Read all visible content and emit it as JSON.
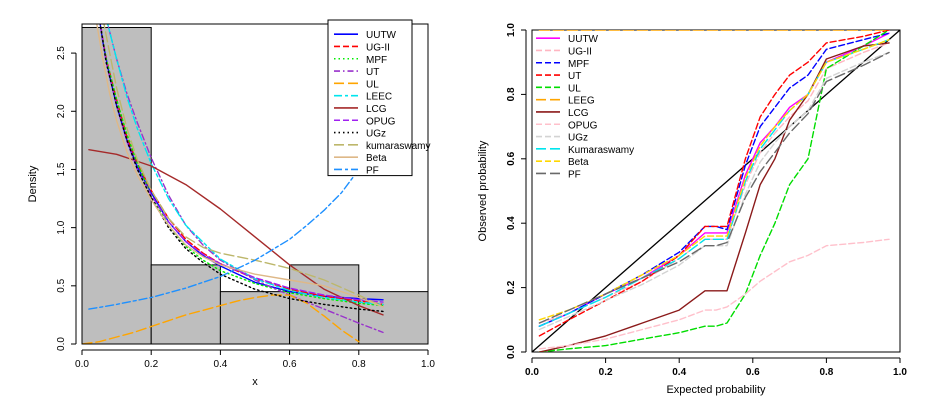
{
  "chart_data": [
    {
      "type": "histogram-with-density-curves",
      "xlabel": "x",
      "ylabel": "Density",
      "xlim": [
        0,
        1
      ],
      "ylim": [
        0,
        2.75
      ],
      "xticks": [
        "0.0",
        "0.2",
        "0.4",
        "0.6",
        "0.8",
        "1.0"
      ],
      "yticks": [
        "0.0",
        "0.5",
        "1.0",
        "1.5",
        "2.0",
        "2.5"
      ],
      "histogram": {
        "bins": [
          [
            0.0,
            0.2
          ],
          [
            0.2,
            0.4
          ],
          [
            0.4,
            0.6
          ],
          [
            0.6,
            0.8
          ],
          [
            0.8,
            1.0
          ]
        ],
        "values": [
          2.72,
          0.68,
          0.45,
          0.68,
          0.45
        ],
        "fill": "#bebebe"
      },
      "legend_position": "top-right",
      "series": [
        {
          "name": "UUTW",
          "color": "#0000ff",
          "dash": "solid",
          "x": [
            0.05,
            0.06,
            0.08,
            0.1,
            0.13,
            0.16,
            0.2,
            0.25,
            0.3,
            0.35,
            0.4,
            0.5,
            0.6,
            0.7,
            0.8,
            0.87
          ],
          "y": [
            2.8,
            2.6,
            2.3,
            2.05,
            1.75,
            1.52,
            1.3,
            1.05,
            0.88,
            0.76,
            0.67,
            0.53,
            0.45,
            0.41,
            0.39,
            0.38
          ]
        },
        {
          "name": "UG-II",
          "color": "#ff0000",
          "dash": "dashed",
          "x": [
            0.05,
            0.07,
            0.1,
            0.13,
            0.16,
            0.2,
            0.25,
            0.3,
            0.35,
            0.4,
            0.5,
            0.6,
            0.7,
            0.8,
            0.87
          ],
          "y": [
            2.8,
            2.45,
            2.1,
            1.78,
            1.55,
            1.32,
            1.08,
            0.9,
            0.78,
            0.69,
            0.56,
            0.47,
            0.41,
            0.37,
            0.34
          ]
        },
        {
          "name": "MPF",
          "color": "#00ee00",
          "dash": "dotted",
          "x": [
            0.05,
            0.07,
            0.1,
            0.13,
            0.16,
            0.2,
            0.25,
            0.3,
            0.35,
            0.4,
            0.5,
            0.6,
            0.7,
            0.8,
            0.87
          ],
          "y": [
            2.8,
            2.45,
            2.1,
            1.8,
            1.55,
            1.28,
            1.02,
            0.84,
            0.72,
            0.63,
            0.52,
            0.44,
            0.39,
            0.35,
            0.33
          ]
        },
        {
          "name": "UT",
          "color": "#9932cc",
          "dash": "dashdot",
          "x": [
            0.07,
            0.1,
            0.13,
            0.16,
            0.2,
            0.25,
            0.3,
            0.35,
            0.4,
            0.5,
            0.6,
            0.7,
            0.8,
            0.87
          ],
          "y": [
            2.8,
            2.45,
            2.15,
            1.9,
            1.6,
            1.28,
            1.02,
            0.85,
            0.72,
            0.55,
            0.42,
            0.3,
            0.18,
            0.1
          ]
        },
        {
          "name": "UL",
          "color": "#ffa500",
          "dash": "longdash",
          "x": [
            0.0,
            0.05,
            0.1,
            0.15,
            0.2,
            0.25,
            0.3,
            0.35,
            0.4,
            0.45,
            0.5,
            0.55,
            0.6,
            0.65,
            0.7,
            0.75,
            0.8
          ],
          "y": [
            0.0,
            0.02,
            0.06,
            0.1,
            0.15,
            0.2,
            0.25,
            0.29,
            0.33,
            0.37,
            0.4,
            0.42,
            0.42,
            0.35,
            0.24,
            0.12,
            0.02
          ]
        },
        {
          "name": "LEEC",
          "color": "#00e5ee",
          "dash": "twodash",
          "x": [
            0.07,
            0.1,
            0.13,
            0.16,
            0.2,
            0.25,
            0.3,
            0.4,
            0.5,
            0.6,
            0.7,
            0.8,
            0.87
          ],
          "y": [
            2.8,
            2.45,
            2.12,
            1.85,
            1.55,
            1.25,
            1.02,
            0.73,
            0.56,
            0.46,
            0.4,
            0.36,
            0.34
          ]
        },
        {
          "name": "LCG",
          "color": "#a52a2a",
          "dash": "solid",
          "x": [
            0.02,
            0.1,
            0.2,
            0.3,
            0.4,
            0.5,
            0.6,
            0.7,
            0.8,
            0.87
          ],
          "y": [
            1.67,
            1.63,
            1.53,
            1.37,
            1.16,
            0.92,
            0.68,
            0.47,
            0.33,
            0.25
          ]
        },
        {
          "name": "OPUG",
          "color": "#a020f0",
          "dash": "dashed",
          "x": [
            0.05,
            0.07,
            0.1,
            0.13,
            0.16,
            0.2,
            0.25,
            0.3,
            0.35,
            0.4,
            0.5,
            0.6,
            0.7,
            0.8,
            0.87
          ],
          "y": [
            2.8,
            2.42,
            2.05,
            1.74,
            1.5,
            1.28,
            1.05,
            0.88,
            0.77,
            0.69,
            0.57,
            0.48,
            0.42,
            0.38,
            0.36
          ]
        },
        {
          "name": "UGz",
          "color": "#000000",
          "dash": "dotted",
          "x": [
            0.05,
            0.07,
            0.1,
            0.13,
            0.16,
            0.2,
            0.25,
            0.3,
            0.35,
            0.4,
            0.5,
            0.6,
            0.7,
            0.8,
            0.87
          ],
          "y": [
            2.8,
            2.42,
            2.05,
            1.75,
            1.5,
            1.26,
            1.0,
            0.82,
            0.7,
            0.6,
            0.47,
            0.39,
            0.34,
            0.3,
            0.28
          ]
        },
        {
          "name": "kumaraswamy",
          "color": "#bdb76b",
          "dash": "longdash",
          "x": [
            0.06,
            0.08,
            0.1,
            0.13,
            0.16,
            0.2,
            0.25,
            0.3,
            0.35,
            0.4,
            0.5,
            0.6,
            0.7,
            0.8,
            0.87
          ],
          "y": [
            2.8,
            2.5,
            2.2,
            1.85,
            1.58,
            1.32,
            1.08,
            0.92,
            0.83,
            0.78,
            0.72,
            0.65,
            0.55,
            0.42,
            0.32
          ]
        },
        {
          "name": "Beta",
          "color": "#deb887",
          "dash": "solid",
          "x": [
            0.04,
            0.06,
            0.08,
            0.1,
            0.13,
            0.16,
            0.2,
            0.25,
            0.3,
            0.35,
            0.4,
            0.5,
            0.6,
            0.7,
            0.8,
            0.87
          ],
          "y": [
            2.8,
            2.45,
            2.15,
            1.92,
            1.65,
            1.45,
            1.24,
            1.02,
            0.85,
            0.75,
            0.68,
            0.6,
            0.55,
            0.5,
            0.4,
            0.32
          ]
        },
        {
          "name": "PF",
          "color": "#1e90ff",
          "dash": "twodash",
          "x": [
            0.02,
            0.1,
            0.2,
            0.3,
            0.4,
            0.5,
            0.6,
            0.65,
            0.7,
            0.75,
            0.8,
            0.84,
            0.87
          ],
          "y": [
            0.3,
            0.34,
            0.4,
            0.48,
            0.58,
            0.72,
            0.9,
            1.02,
            1.15,
            1.3,
            1.5,
            1.75,
            2.05
          ]
        }
      ]
    },
    {
      "type": "line",
      "xlabel": "Expected probability",
      "ylabel": "Observed probability",
      "xlim": [
        0,
        1
      ],
      "ylim": [
        0,
        1
      ],
      "xticks": [
        "0.0",
        "0.2",
        "0.4",
        "0.6",
        "0.8",
        "1.0"
      ],
      "yticks": [
        "0.0",
        "0.2",
        "0.4",
        "0.6",
        "0.8",
        "1.0"
      ],
      "legend_position": "top-left",
      "reference_line": {
        "x": [
          0,
          1
        ],
        "y": [
          0,
          1
        ],
        "color": "#000000"
      },
      "series": [
        {
          "name": "UUTW",
          "color": "#ff00ff",
          "dash": "solid",
          "x": [
            0.02,
            0.1,
            0.2,
            0.3,
            0.4,
            0.47,
            0.5,
            0.53,
            0.58,
            0.62,
            0.66,
            0.7,
            0.75,
            0.8,
            0.9,
            0.97
          ],
          "y": [
            0.08,
            0.12,
            0.18,
            0.23,
            0.3,
            0.37,
            0.37,
            0.37,
            0.55,
            0.65,
            0.7,
            0.76,
            0.8,
            0.9,
            0.95,
            0.99
          ]
        },
        {
          "name": "UG-II",
          "color": "#ffb6c1",
          "dash": "dashed",
          "x": [
            0.02,
            0.1,
            0.2,
            0.3,
            0.4,
            0.47,
            0.5,
            0.53,
            0.58,
            0.62,
            0.66,
            0.7,
            0.75,
            0.8,
            0.9,
            0.97
          ],
          "y": [
            0.09,
            0.12,
            0.17,
            0.22,
            0.29,
            0.35,
            0.35,
            0.35,
            0.52,
            0.62,
            0.68,
            0.73,
            0.78,
            0.88,
            0.93,
            0.96
          ]
        },
        {
          "name": "MPF",
          "color": "#0000ff",
          "dash": "dashed",
          "x": [
            0.02,
            0.1,
            0.2,
            0.3,
            0.4,
            0.47,
            0.5,
            0.53,
            0.58,
            0.62,
            0.66,
            0.7,
            0.75,
            0.8,
            0.9,
            0.97
          ],
          "y": [
            0.08,
            0.12,
            0.18,
            0.24,
            0.31,
            0.39,
            0.39,
            0.38,
            0.58,
            0.7,
            0.76,
            0.82,
            0.86,
            0.94,
            0.97,
            0.99
          ]
        },
        {
          "name": "UT",
          "color": "#ff0000",
          "dash": "dashed",
          "x": [
            0.02,
            0.1,
            0.2,
            0.3,
            0.4,
            0.47,
            0.5,
            0.53,
            0.58,
            0.62,
            0.66,
            0.7,
            0.75,
            0.8,
            0.9,
            0.97
          ],
          "y": [
            0.05,
            0.1,
            0.16,
            0.22,
            0.3,
            0.39,
            0.39,
            0.39,
            0.6,
            0.73,
            0.8,
            0.86,
            0.9,
            0.96,
            0.98,
            1.0
          ]
        },
        {
          "name": "UL",
          "color": "#00dd00",
          "dash": "dashed",
          "x": [
            0.02,
            0.1,
            0.2,
            0.3,
            0.4,
            0.47,
            0.5,
            0.53,
            0.58,
            0.62,
            0.66,
            0.7,
            0.75,
            0.8,
            0.9,
            0.97
          ],
          "y": [
            0.0,
            0.01,
            0.02,
            0.04,
            0.06,
            0.08,
            0.08,
            0.09,
            0.18,
            0.3,
            0.4,
            0.52,
            0.6,
            0.88,
            0.95,
            1.0
          ]
        },
        {
          "name": "LEEG",
          "color": "#ffa500",
          "dash": "longdash",
          "x": [
            0.02,
            0.2,
            0.4,
            0.6,
            0.8,
            0.97
          ],
          "y": [
            1.0,
            1.0,
            1.0,
            1.0,
            1.0,
            1.0
          ]
        },
        {
          "name": "LCG",
          "color": "#8b1a1a",
          "dash": "solid",
          "x": [
            0.02,
            0.1,
            0.2,
            0.3,
            0.4,
            0.47,
            0.5,
            0.53,
            0.58,
            0.62,
            0.66,
            0.7,
            0.75,
            0.8,
            0.9,
            0.97
          ],
          "y": [
            0.0,
            0.02,
            0.05,
            0.09,
            0.13,
            0.19,
            0.19,
            0.19,
            0.37,
            0.52,
            0.6,
            0.72,
            0.8,
            0.91,
            0.95,
            0.96
          ]
        },
        {
          "name": "OPUG",
          "color": "#ffc0cb",
          "dash": "dashed",
          "x": [
            0.02,
            0.1,
            0.2,
            0.3,
            0.4,
            0.47,
            0.5,
            0.53,
            0.58,
            0.62,
            0.66,
            0.7,
            0.75,
            0.8,
            0.9,
            0.97
          ],
          "y": [
            0.01,
            0.02,
            0.04,
            0.07,
            0.1,
            0.13,
            0.13,
            0.14,
            0.18,
            0.22,
            0.25,
            0.28,
            0.3,
            0.33,
            0.34,
            0.35
          ]
        },
        {
          "name": "UGz",
          "color": "#d3d3d3",
          "dash": "dashed",
          "x": [
            0.02,
            0.1,
            0.2,
            0.3,
            0.4,
            0.47,
            0.5,
            0.53,
            0.58,
            0.62,
            0.66,
            0.7,
            0.75,
            0.8,
            0.9,
            0.97
          ],
          "y": [
            0.07,
            0.11,
            0.16,
            0.21,
            0.27,
            0.33,
            0.33,
            0.33,
            0.49,
            0.59,
            0.65,
            0.7,
            0.75,
            0.85,
            0.9,
            0.93
          ]
        },
        {
          "name": "Kumaraswamy",
          "color": "#00e5ee",
          "dash": "longdash",
          "x": [
            0.02,
            0.1,
            0.2,
            0.3,
            0.4,
            0.47,
            0.5,
            0.53,
            0.58,
            0.62,
            0.66,
            0.7,
            0.75,
            0.8,
            0.9,
            0.97
          ],
          "y": [
            0.08,
            0.12,
            0.17,
            0.23,
            0.29,
            0.35,
            0.35,
            0.35,
            0.53,
            0.63,
            0.69,
            0.75,
            0.8,
            0.9,
            0.94,
            0.97
          ]
        },
        {
          "name": "Beta",
          "color": "#ffd700",
          "dash": "dashed",
          "x": [
            0.02,
            0.1,
            0.2,
            0.3,
            0.4,
            0.47,
            0.5,
            0.53,
            0.58,
            0.62,
            0.66,
            0.7,
            0.75,
            0.8,
            0.9,
            0.97
          ],
          "y": [
            0.1,
            0.13,
            0.18,
            0.24,
            0.3,
            0.36,
            0.36,
            0.36,
            0.54,
            0.64,
            0.7,
            0.75,
            0.8,
            0.9,
            0.94,
            0.97
          ]
        },
        {
          "name": "PF",
          "color": "#696969",
          "dash": "longdash",
          "x": [
            0.02,
            0.1,
            0.2,
            0.3,
            0.4,
            0.47,
            0.5,
            0.53,
            0.58,
            0.62,
            0.66,
            0.7,
            0.75,
            0.8,
            0.9,
            0.97
          ],
          "y": [
            0.09,
            0.13,
            0.18,
            0.23,
            0.28,
            0.33,
            0.33,
            0.34,
            0.48,
            0.56,
            0.62,
            0.68,
            0.74,
            0.84,
            0.89,
            0.93
          ]
        }
      ]
    }
  ]
}
